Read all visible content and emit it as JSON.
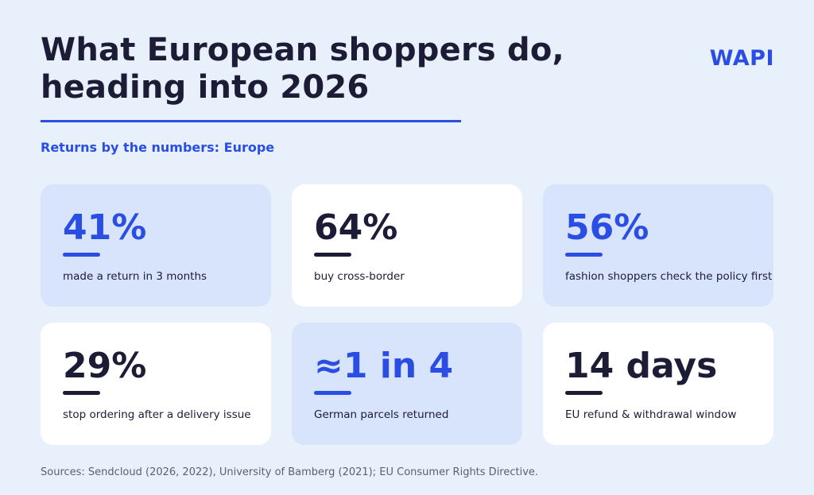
{
  "header": {
    "title_line1": "What European shoppers do,",
    "title_line2": "heading into 2026",
    "brand": "WAPI",
    "subtitle": "Returns by the numbers: Europe"
  },
  "cards": [
    {
      "stat": "41%",
      "label": "made a return in 3 months"
    },
    {
      "stat": "64%",
      "label": "buy cross-border"
    },
    {
      "stat": "56%",
      "label": "fashion shoppers check the policy first"
    },
    {
      "stat": "29%",
      "label": "stop ordering after a delivery issue"
    },
    {
      "stat": "≈1 in 4",
      "label": "German parcels returned"
    },
    {
      "stat": "14 days",
      "label": "EU refund & withdrawal window"
    }
  ],
  "footer": {
    "sources": "Sources: Sendcloud (2026, 2022), University of Bamberg (2021); EU Consumer Rights Directive."
  },
  "colors": {
    "background": "#e8f0fb",
    "accent": "#2a4de4",
    "dark": "#1c1c36",
    "card_tint": "#d8e4fb",
    "card_plain": "#ffffff"
  }
}
